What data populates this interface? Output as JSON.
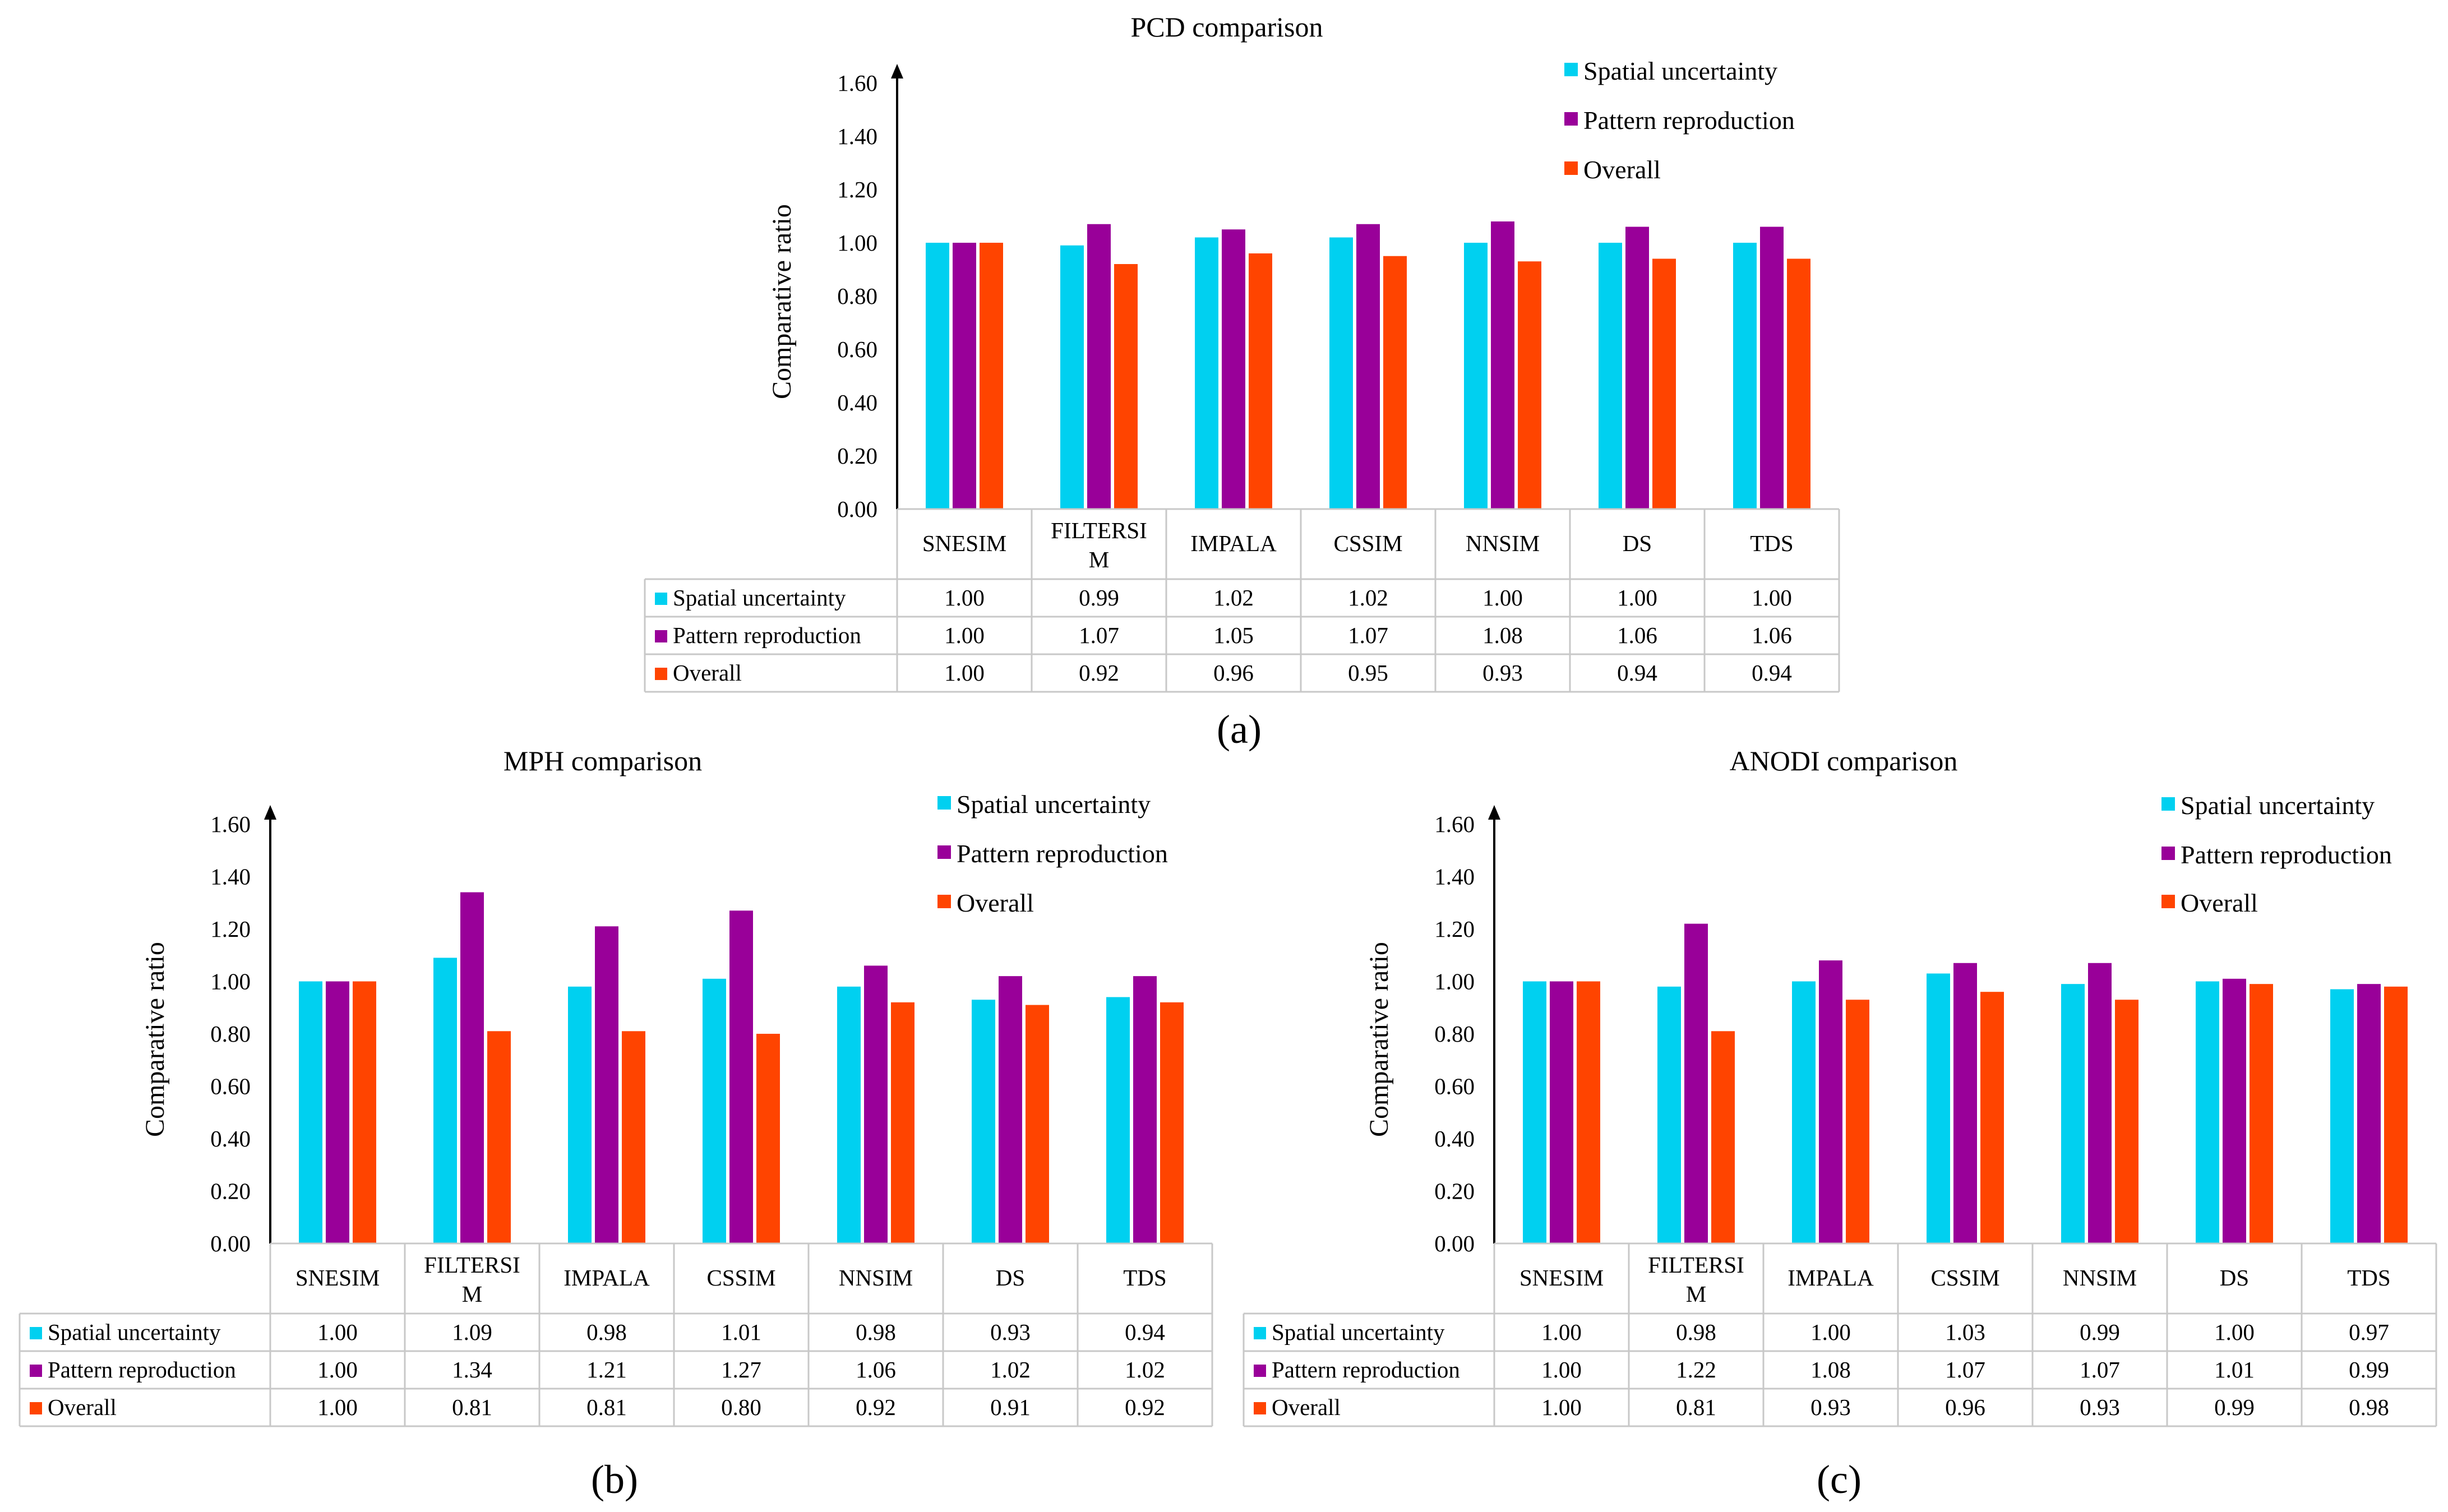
{
  "chart_data": [
    {
      "type": "bar",
      "panel_label": "(a)",
      "title": "PCD comparison",
      "ylabel": "Comparative ratio",
      "xlabel": "",
      "ylim": [
        0,
        1.6
      ],
      "yticks": [
        "0.00",
        "0.20",
        "0.40",
        "0.60",
        "0.80",
        "1.00",
        "1.20",
        "1.40",
        "1.60"
      ],
      "categories": [
        "SNESIM",
        "FILTERSIM",
        "IMPALA",
        "CSSIM",
        "NNSIM",
        "DS",
        "TDS"
      ],
      "category_labels": [
        [
          "SNESIM"
        ],
        [
          "FILTERSI",
          "M"
        ],
        [
          "IMPALA"
        ],
        [
          "CSSIM"
        ],
        [
          "NNSIM"
        ],
        [
          "DS"
        ],
        [
          "TDS"
        ]
      ],
      "legend_position": "top-right",
      "series": [
        {
          "name": "Spatial uncertainty",
          "color": "#00d0f0",
          "values": [
            1.0,
            0.99,
            1.02,
            1.02,
            1.0,
            1.0,
            1.0
          ],
          "labels": [
            "1.00",
            "0.99",
            "1.02",
            "1.02",
            "1.00",
            "1.00",
            "1.00"
          ]
        },
        {
          "name": "Pattern reproduction",
          "color": "#990099",
          "values": [
            1.0,
            1.07,
            1.05,
            1.07,
            1.08,
            1.06,
            1.06
          ],
          "labels": [
            "1.00",
            "1.07",
            "1.05",
            "1.07",
            "1.08",
            "1.06",
            "1.06"
          ]
        },
        {
          "name": "Overall",
          "color": "#ff4400",
          "values": [
            1.0,
            0.92,
            0.96,
            0.95,
            0.93,
            0.94,
            0.94
          ],
          "labels": [
            "1.00",
            "0.92",
            "0.96",
            "0.95",
            "0.93",
            "0.94",
            "0.94"
          ]
        }
      ]
    },
    {
      "type": "bar",
      "panel_label": "(b)",
      "title": "MPH comparison",
      "ylabel": "Comparative ratio",
      "xlabel": "",
      "ylim": [
        0,
        1.6
      ],
      "yticks": [
        "0.00",
        "0.20",
        "0.40",
        "0.60",
        "0.80",
        "1.00",
        "1.20",
        "1.40",
        "1.60"
      ],
      "categories": [
        "SNESIM",
        "FILTERSIM",
        "IMPALA",
        "CSSIM",
        "NNSIM",
        "DS",
        "TDS"
      ],
      "category_labels": [
        [
          "SNESIM"
        ],
        [
          "FILTERSI",
          "M"
        ],
        [
          "IMPALA"
        ],
        [
          "CSSIM"
        ],
        [
          "NNSIM"
        ],
        [
          "DS"
        ],
        [
          "TDS"
        ]
      ],
      "legend_position": "top-right",
      "series": [
        {
          "name": "Spatial uncertainty",
          "color": "#00d0f0",
          "values": [
            1.0,
            1.09,
            0.98,
            1.01,
            0.98,
            0.93,
            0.94
          ],
          "labels": [
            "1.00",
            "1.09",
            "0.98",
            "1.01",
            "0.98",
            "0.93",
            "0.94"
          ]
        },
        {
          "name": "Pattern reproduction",
          "color": "#990099",
          "values": [
            1.0,
            1.34,
            1.21,
            1.27,
            1.06,
            1.02,
            1.02
          ],
          "labels": [
            "1.00",
            "1.34",
            "1.21",
            "1.27",
            "1.06",
            "1.02",
            "1.02"
          ]
        },
        {
          "name": "Overall",
          "color": "#ff4400",
          "values": [
            1.0,
            0.81,
            0.81,
            0.8,
            0.92,
            0.91,
            0.92
          ],
          "labels": [
            "1.00",
            "0.81",
            "0.81",
            "0.80",
            "0.92",
            "0.91",
            "0.92"
          ]
        }
      ]
    },
    {
      "type": "bar",
      "panel_label": "(c)",
      "title": "ANODI comparison",
      "ylabel": "Comparative ratio",
      "xlabel": "",
      "ylim": [
        0,
        1.6
      ],
      "yticks": [
        "0.00",
        "0.20",
        "0.40",
        "0.60",
        "0.80",
        "1.00",
        "1.20",
        "1.40",
        "1.60"
      ],
      "categories": [
        "SNESIM",
        "FILTERSIM",
        "IMPALA",
        "CSSIM",
        "NNSIM",
        "DS",
        "TDS"
      ],
      "category_labels": [
        [
          "SNESIM"
        ],
        [
          "FILTERSI",
          "M"
        ],
        [
          "IMPALA"
        ],
        [
          "CSSIM"
        ],
        [
          "NNSIM"
        ],
        [
          "DS"
        ],
        [
          "TDS"
        ]
      ],
      "legend_position": "top-right",
      "series": [
        {
          "name": "Spatial uncertainty",
          "color": "#00d0f0",
          "values": [
            1.0,
            0.98,
            1.0,
            1.03,
            0.99,
            1.0,
            0.97
          ],
          "labels": [
            "1.00",
            "0.98",
            "1.00",
            "1.03",
            "0.99",
            "1.00",
            "0.97"
          ]
        },
        {
          "name": "Pattern reproduction",
          "color": "#990099",
          "values": [
            1.0,
            1.22,
            1.08,
            1.07,
            1.07,
            1.01,
            0.99
          ],
          "labels": [
            "1.00",
            "1.22",
            "1.08",
            "1.07",
            "1.07",
            "1.01",
            "0.99"
          ]
        },
        {
          "name": "Overall",
          "color": "#ff4400",
          "values": [
            1.0,
            0.81,
            0.93,
            0.96,
            0.93,
            0.99,
            0.98
          ],
          "labels": [
            "1.00",
            "0.81",
            "0.93",
            "0.96",
            "0.93",
            "0.99",
            "0.98"
          ]
        }
      ]
    }
  ]
}
